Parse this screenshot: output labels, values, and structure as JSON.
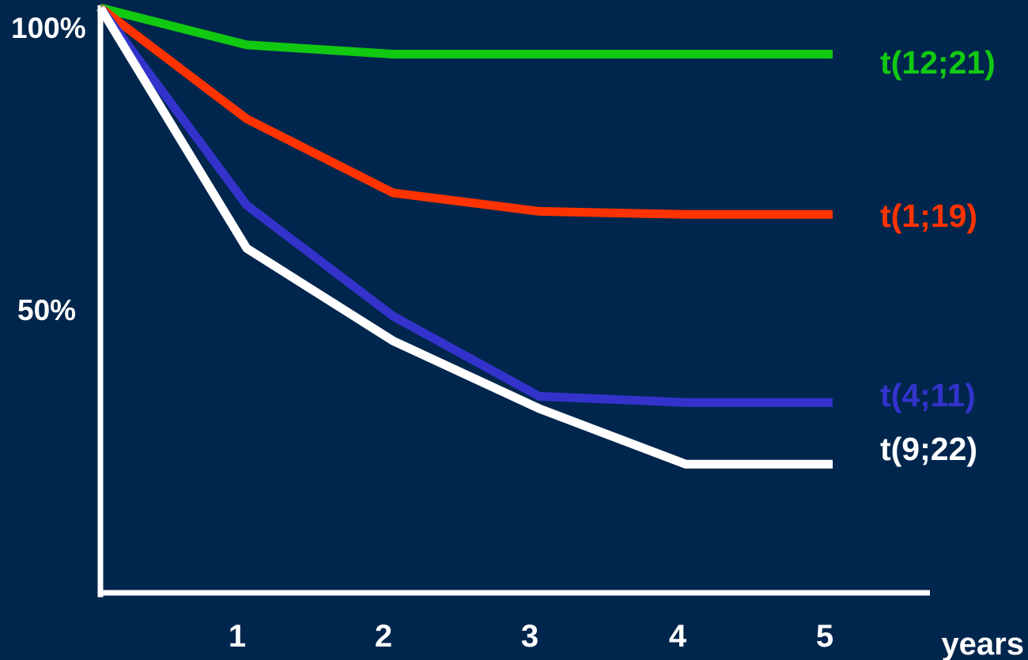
{
  "chart_data": {
    "type": "line",
    "xlabel": "years",
    "ylabel": "",
    "title": "",
    "x": [
      0,
      1,
      2,
      3,
      4,
      5
    ],
    "x_tick_labels": [
      "1",
      "2",
      "3",
      "4",
      "5"
    ],
    "y_tick_labels": [
      "100%",
      "50%"
    ],
    "xlim": [
      0,
      5
    ],
    "ylim": [
      0,
      100
    ],
    "grid": false,
    "legend": "right",
    "series": [
      {
        "name": "t(12;21)",
        "color": "#12c912",
        "values": [
          100,
          94,
          92.5,
          92.5,
          92.5,
          92.5
        ]
      },
      {
        "name": "t(1;19)",
        "color": "#ff3300",
        "values": [
          100,
          82,
          70,
          67,
          66.5,
          66.5
        ]
      },
      {
        "name": "t(4;11)",
        "color": "#3333cc",
        "values": [
          100,
          68,
          50,
          37,
          36,
          36
        ]
      },
      {
        "name": "t(9;22)",
        "color": "#ffffff",
        "values": [
          100,
          61,
          46,
          35,
          26,
          26
        ]
      }
    ],
    "axis_color": "#ffffff",
    "background": "#00264d"
  }
}
